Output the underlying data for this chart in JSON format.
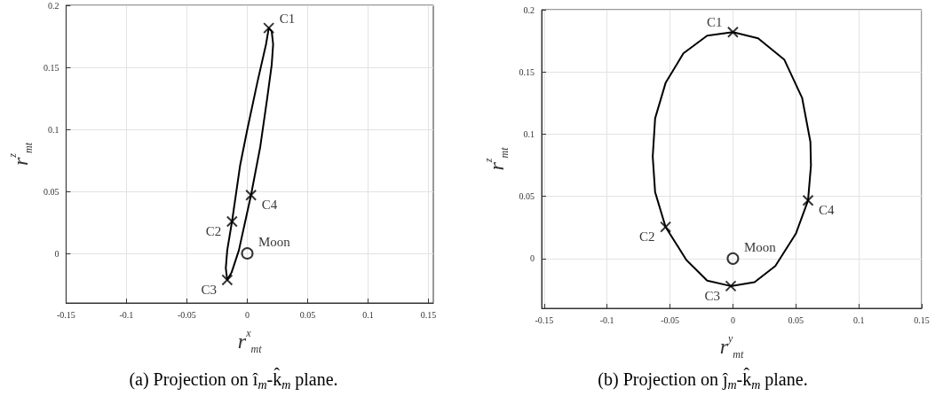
{
  "chart_data": [
    {
      "type": "scatter",
      "xlabel": "r$^{x}$$_{mt}$",
      "ylabel": "r$^{z}$$_{mt}$",
      "annotations": [
        "(a) Projection on î$_{m}$-k̂$_{m}$ plane."
      ],
      "xlim": [
        -0.15,
        0.154
      ],
      "ylim": [
        -0.04,
        0.2
      ],
      "xticks": [
        -0.15,
        -0.1,
        -0.05,
        0,
        0.05,
        0.1,
        0.15
      ],
      "yticks": [
        0,
        0.05,
        0.1,
        0.15,
        0.2
      ],
      "grid": true,
      "series": [
        {
          "type": "scatter",
          "marker": "cross",
          "color": "#000000",
          "x": [
            0.0178,
            -0.0126,
            -0.0166,
            0.0031
          ],
          "values": [
            0.1817,
            0.0257,
            -0.0214,
            0.047
          ],
          "value_labels": [
            "C1",
            "C2",
            "C3",
            "C4"
          ]
        },
        {
          "type": "scatter",
          "marker": "circle",
          "color": "#000000",
          "x": [
            0
          ],
          "values": [
            0
          ],
          "value_labels": [
            "Moon"
          ]
        }
      ]
    },
    {
      "type": "scatter",
      "xlabel": "r$^{y}$$_{mt}$",
      "ylabel": "r$^{z}$$_{mt}$",
      "annotations": [
        "(b) Projection on ĵ$_{m}$-k̂$_{m}$ plane."
      ],
      "xlim": [
        -0.152,
        0.15
      ],
      "ylim": [
        -0.04,
        0.2
      ],
      "xticks": [
        -0.15,
        -0.1,
        -0.05,
        0,
        0.05,
        0.1,
        0.15
      ],
      "yticks": [
        0,
        0.05,
        0.1,
        0.15,
        0.2
      ],
      "grid": true,
      "series": [
        {
          "type": "scatter",
          "marker": "cross",
          "color": "#000000",
          "x": [
            0,
            -0.0535,
            -0.0017,
            0.0597
          ],
          "values": [
            0.182,
            0.0254,
            -0.0221,
            0.0467
          ],
          "value_labels": [
            "C1",
            "C2",
            "C3",
            "C4"
          ]
        },
        {
          "type": "scatter",
          "marker": "circle",
          "color": "#000000",
          "x": [
            0
          ],
          "values": [
            0
          ],
          "value_labels": [
            "Moon"
          ]
        }
      ]
    }
  ]
}
